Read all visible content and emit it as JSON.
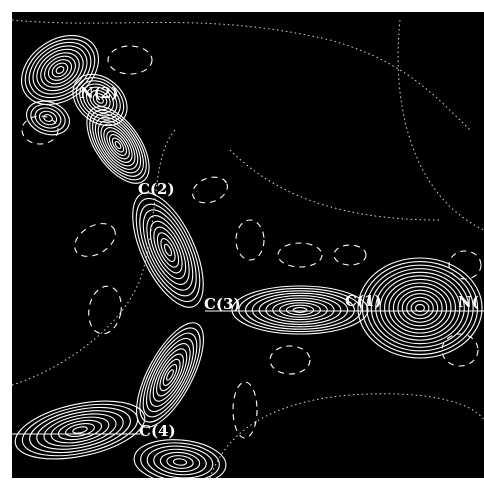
{
  "figure": {
    "background": "#000000",
    "line_color": "#ffffff",
    "frame_color": "#ffffff"
  },
  "atoms": [
    {
      "id": "n2",
      "label": "N(2)"
    },
    {
      "id": "c2",
      "label": "C(2)"
    },
    {
      "id": "c3",
      "label": "C(3)"
    },
    {
      "id": "c1",
      "label": "C(1)"
    },
    {
      "id": "n1",
      "label": "N("
    },
    {
      "id": "c4",
      "label": "C(4)"
    }
  ]
}
